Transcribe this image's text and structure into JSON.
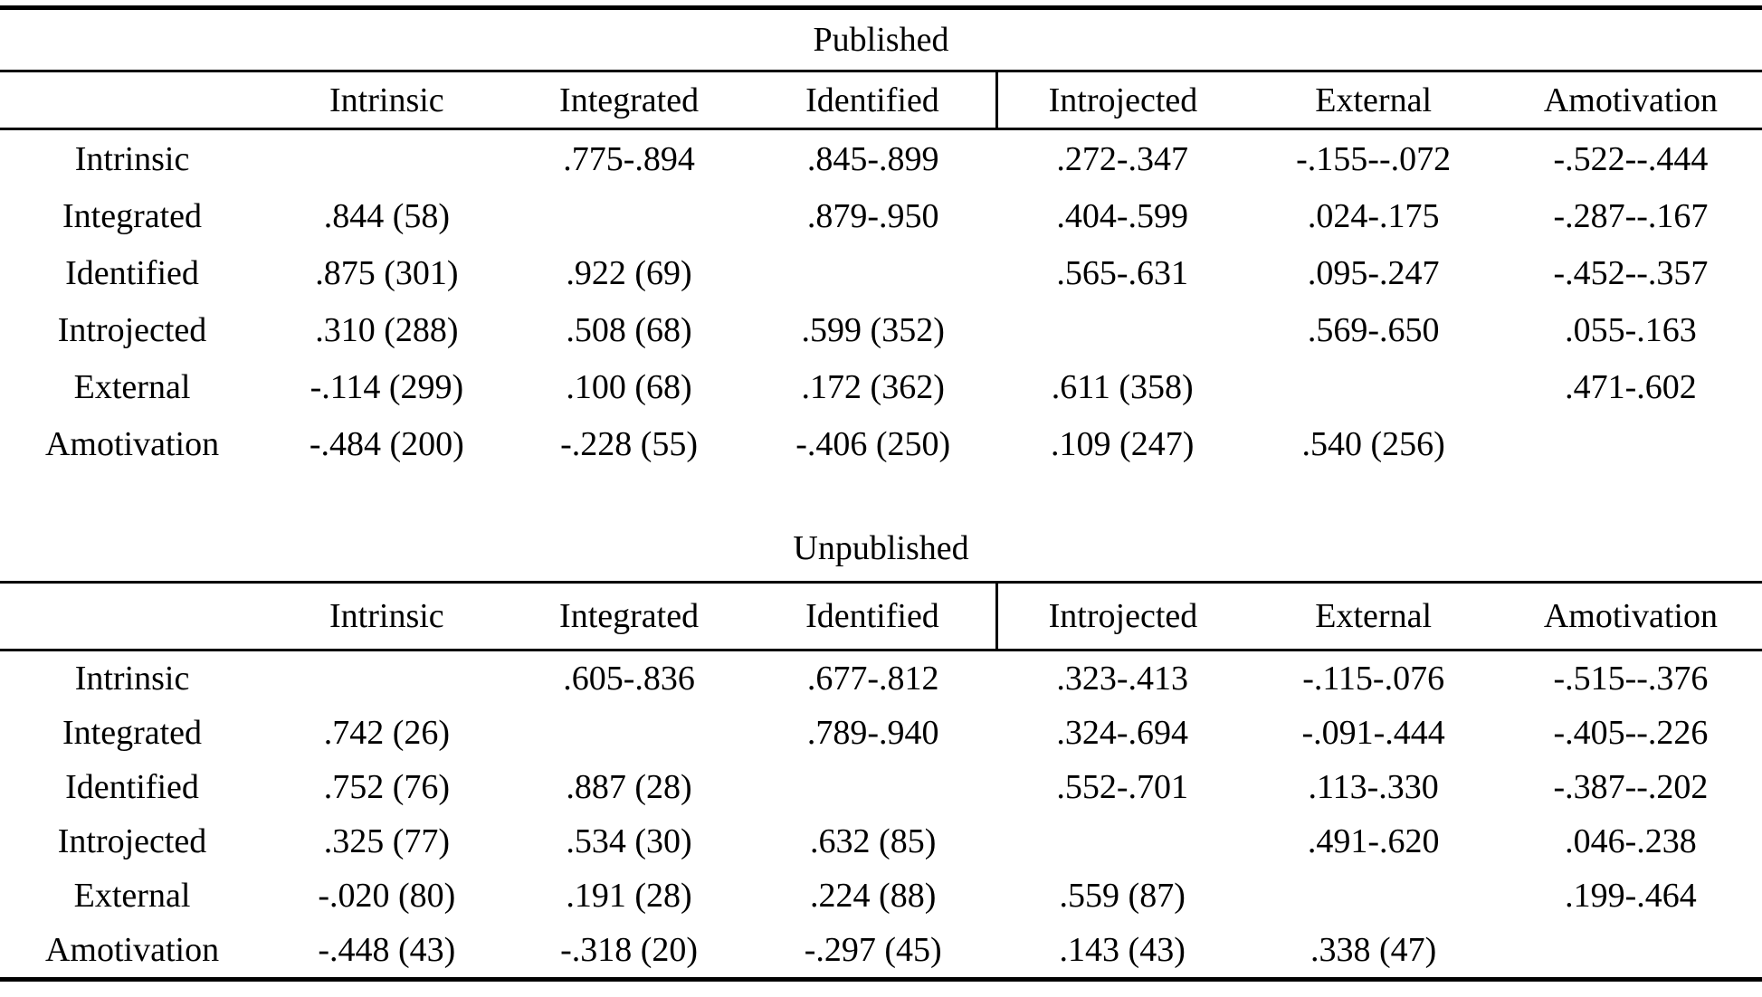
{
  "sections": [
    {
      "id": "published",
      "title": "Published",
      "columns": [
        "Intrinsic",
        "Integrated",
        "Identified",
        "Introjected",
        "External",
        "Amotivation"
      ],
      "rows": [
        {
          "label": "Intrinsic",
          "cells": [
            "",
            ".775-.894",
            ".845-.899",
            ".272-.347",
            "-.155--.072",
            "-.522--.444"
          ]
        },
        {
          "label": "Integrated",
          "cells": [
            ".844 (58)",
            "",
            ".879-.950",
            ".404-.599",
            ".024-.175",
            "-.287--.167"
          ]
        },
        {
          "label": "Identified",
          "cells": [
            ".875 (301)",
            ".922 (69)",
            "",
            ".565-.631",
            ".095-.247",
            "-.452--.357"
          ]
        },
        {
          "label": "Introjected",
          "cells": [
            ".310 (288)",
            ".508 (68)",
            ".599 (352)",
            "",
            ".569-.650",
            ".055-.163"
          ]
        },
        {
          "label": "External",
          "cells": [
            "-.114 (299)",
            ".100 (68)",
            ".172 (362)",
            ".611 (358)",
            "",
            ".471-.602"
          ]
        },
        {
          "label": "Amotivation",
          "cells": [
            "-.484 (200)",
            "-.228 (55)",
            "-.406 (250)",
            ".109 (247)",
            ".540 (256)",
            ""
          ]
        }
      ]
    },
    {
      "id": "unpublished",
      "title": "Unpublished",
      "columns": [
        "Intrinsic",
        "Integrated",
        "Identified",
        "Introjected",
        "External",
        "Amotivation"
      ],
      "rows": [
        {
          "label": "Intrinsic",
          "cells": [
            "",
            ".605-.836",
            ".677-.812",
            ".323-.413",
            "-.115-.076",
            "-.515--.376"
          ]
        },
        {
          "label": "Integrated",
          "cells": [
            ".742 (26)",
            "",
            ".789-.940",
            ".324-.694",
            "-.091-.444",
            "-.405--.226"
          ]
        },
        {
          "label": "Identified",
          "cells": [
            ".752 (76)",
            ".887 (28)",
            "",
            ".552-.701",
            ".113-.330",
            "-.387--.202"
          ]
        },
        {
          "label": "Introjected",
          "cells": [
            ".325 (77)",
            ".534 (30)",
            ".632 (85)",
            "",
            ".491-.620",
            ".046-.238"
          ]
        },
        {
          "label": "External",
          "cells": [
            "-.020 (80)",
            ".191 (28)",
            ".224 (88)",
            ".559 (87)",
            "",
            ".199-.464"
          ]
        },
        {
          "label": "Amotivation",
          "cells": [
            "-.448 (43)",
            "-.318 (20)",
            "-.297 (45)",
            ".143 (43)",
            ".338 (47)",
            ""
          ]
        }
      ]
    }
  ]
}
